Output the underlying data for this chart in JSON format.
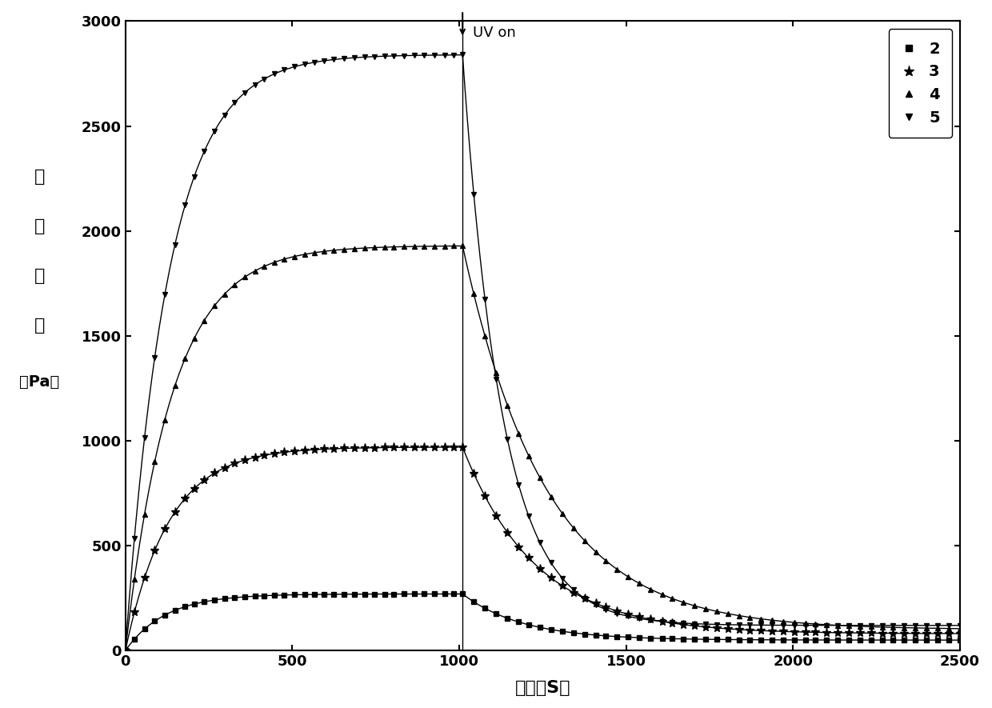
{
  "title": "",
  "xlabel": "时间（S）",
  "ylabel": "储能\n模\n量\n（Pa）",
  "xlim": [
    0,
    2500
  ],
  "ylim": [
    0,
    3000
  ],
  "xticks": [
    0,
    500,
    1000,
    1500,
    2000,
    2500
  ],
  "yticks": [
    0,
    500,
    1000,
    1500,
    2000,
    2500,
    3000
  ],
  "uv_on_x": 1010,
  "series": [
    {
      "label": "2",
      "marker": "s",
      "plateau": 270,
      "final": 50,
      "color": "black",
      "rise_tau": 120,
      "decay_tau": 180,
      "markersize": 5
    },
    {
      "label": "3",
      "marker": "*",
      "plateau": 970,
      "final": 80,
      "color": "black",
      "rise_tau": 130,
      "decay_tau": 220,
      "markersize": 6
    },
    {
      "label": "4",
      "marker": "^",
      "plateau": 1930,
      "final": 100,
      "color": "black",
      "rise_tau": 140,
      "decay_tau": 250,
      "markersize": 5
    },
    {
      "label": "5",
      "marker": "v",
      "plateau": 2840,
      "final": 120,
      "color": "black",
      "rise_tau": 130,
      "decay_tau": 120,
      "markersize": 5
    }
  ],
  "background_color": "white",
  "axis_color": "black",
  "font_size": 14,
  "legend_fontsize": 14
}
